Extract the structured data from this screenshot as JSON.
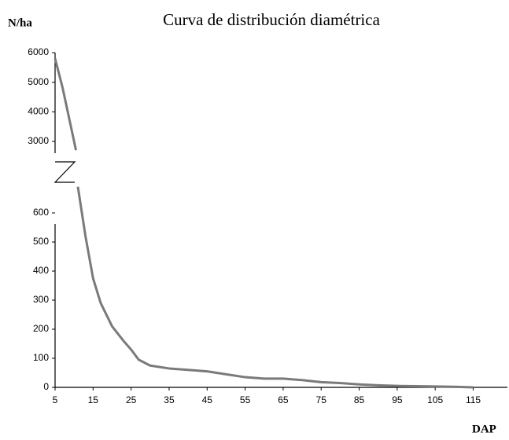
{
  "chart_data": {
    "type": "line",
    "title": "Curva de distribución diamétrica",
    "y_label": "N/ha",
    "x_label": "DAP",
    "x": [
      5,
      7,
      9,
      10.5,
      11,
      13,
      15,
      17,
      20,
      23,
      25,
      27,
      30,
      35,
      40,
      45,
      50,
      55,
      60,
      65,
      70,
      75,
      80,
      85,
      90,
      95,
      100,
      105,
      110,
      115
    ],
    "series": [
      {
        "name": "N/ha",
        "color": "#7a7a7a",
        "values": [
          5800,
          4800,
          3600,
          2700,
          690,
          520,
          375,
          290,
          210,
          160,
          130,
          95,
          75,
          65,
          60,
          55,
          45,
          35,
          30,
          30,
          25,
          18,
          15,
          10,
          7,
          5,
          4,
          3,
          2,
          0
        ]
      }
    ],
    "xlim": [
      5,
      124
    ],
    "xticks": [
      5,
      15,
      25,
      35,
      45,
      55,
      65,
      75,
      85,
      95,
      105,
      115
    ],
    "y_segments": [
      {
        "ylim": [
          0,
          700
        ],
        "yticks": [
          0,
          100,
          200,
          300,
          400,
          500,
          600
        ]
      },
      {
        "ylim": [
          2600,
          6000
        ],
        "yticks": [
          3000,
          4000,
          5000,
          6000
        ]
      }
    ]
  }
}
